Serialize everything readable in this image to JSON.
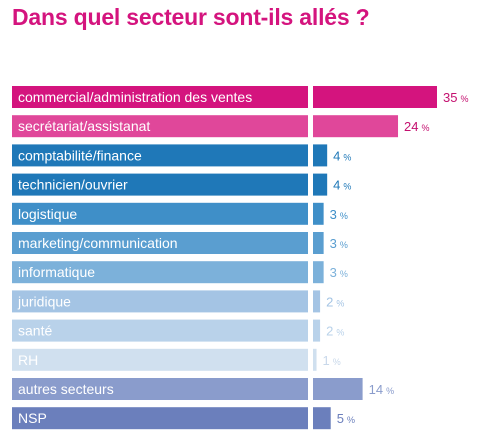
{
  "chart_data": {
    "type": "bar",
    "orientation": "horizontal",
    "title": "Dans quel secteur sont-ils allés ?",
    "categories": [
      "commercial/administration des ventes",
      "secrétariat/assistanat",
      "comptabilité/finance",
      "technicien/ouvrier",
      "logistique",
      "marketing/communication",
      "informatique",
      "juridique",
      "santé",
      "RH",
      "autres secteurs",
      "NSP"
    ],
    "values": [
      35,
      24,
      4,
      4,
      3,
      3,
      3,
      2,
      2,
      1,
      14,
      5
    ],
    "value_suffix": "%",
    "xlim": [
      0,
      35
    ],
    "grid": false,
    "legend": "none"
  },
  "colors": {
    "title": "#d4147e",
    "label_text": "#ffffff",
    "bars": [
      "#d4147e",
      "#e0479a",
      "#1f78b8",
      "#1f78b8",
      "#3f8fc8",
      "#5a9ed0",
      "#7cb1da",
      "#a4c4e4",
      "#b9d2ea",
      "#d0e0ef",
      "#8a9ccc",
      "#6b7fbc"
    ],
    "values": [
      "#c4106f",
      "#c4106f",
      "#1f78b8",
      "#1f78b8",
      "#3f8fc8",
      "#5a9ed0",
      "#7cb1da",
      "#a4c4e4",
      "#b9d2ea",
      "#c8d8ea",
      "#8a9ccc",
      "#6b7fbc"
    ]
  }
}
